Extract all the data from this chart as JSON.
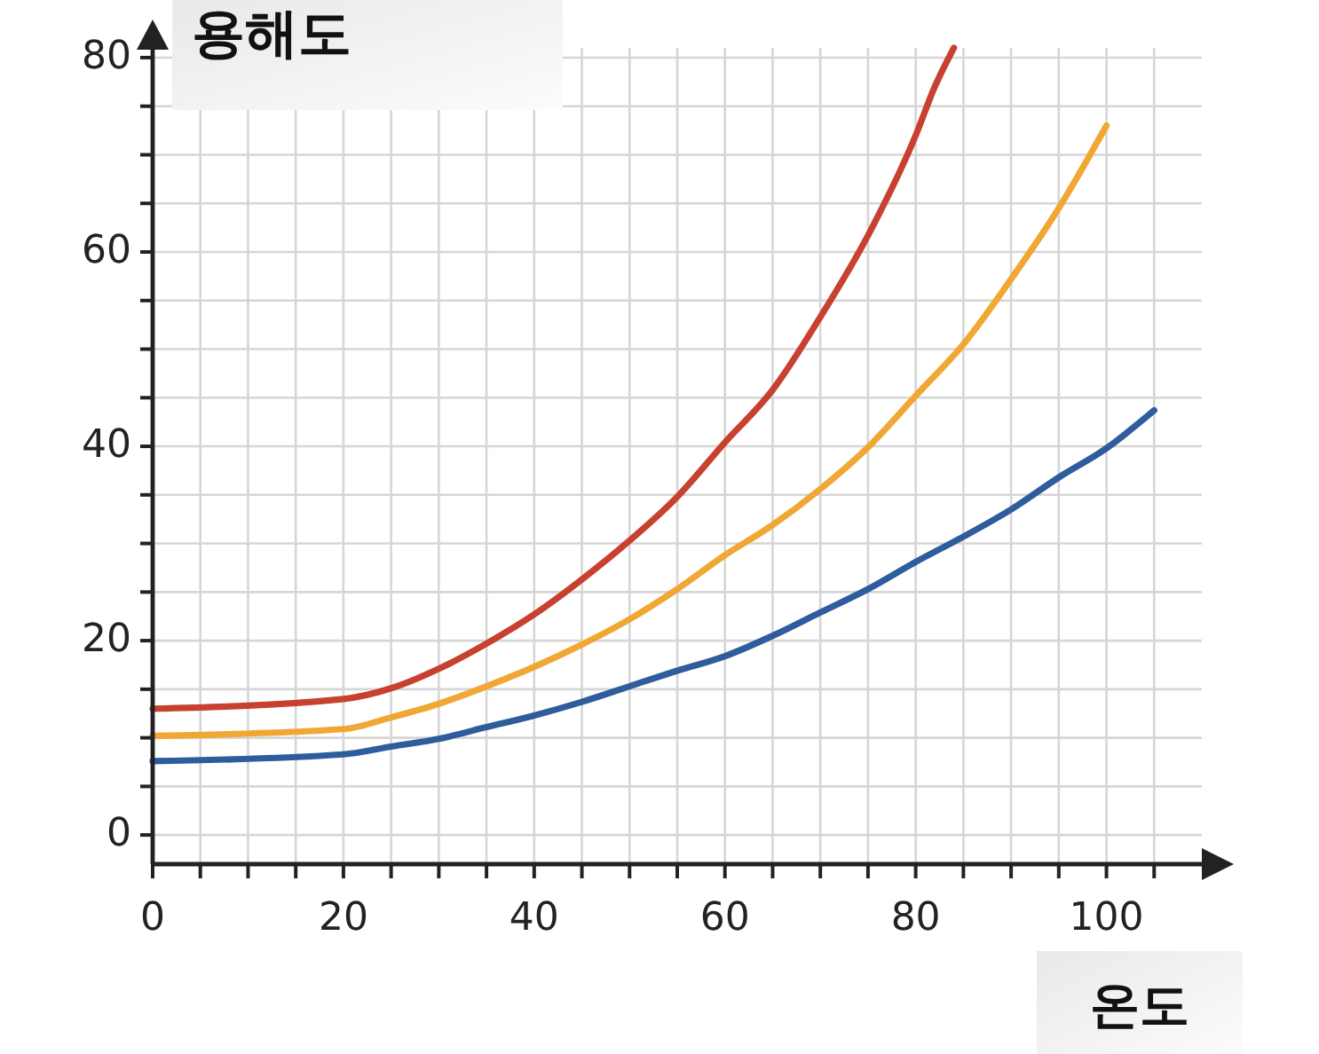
{
  "chart_data": {
    "type": "line",
    "xlabel": "온도",
    "ylabel": "용해도",
    "xlim": [
      0,
      110
    ],
    "ylim": [
      -3,
      81
    ],
    "xticks": [
      0,
      {
        "value": 5,
        "label": null
      },
      {
        "value": 10,
        "label": null
      },
      {
        "value": 15,
        "label": null
      },
      20,
      {
        "value": 25,
        "label": null
      },
      {
        "value": 30,
        "label": null
      },
      {
        "value": 35,
        "label": null
      },
      40,
      {
        "value": 45,
        "label": null
      },
      {
        "value": 50,
        "label": null
      },
      {
        "value": 55,
        "label": null
      },
      60,
      {
        "value": 65,
        "label": null
      },
      {
        "value": 70,
        "label": null
      },
      {
        "value": 75,
        "label": null
      },
      80,
      {
        "value": 85,
        "label": null
      },
      {
        "value": 90,
        "label": null
      },
      {
        "value": 95,
        "label": null
      },
      100,
      {
        "value": 105,
        "label": null
      }
    ],
    "yticks": [
      0,
      {
        "value": 5,
        "label": null
      },
      {
        "value": 10,
        "label": null
      },
      {
        "value": 15,
        "label": null
      },
      20,
      {
        "value": 25,
        "label": null
      },
      {
        "value": 30,
        "label": null
      },
      {
        "value": 35,
        "label": null
      },
      40,
      {
        "value": 45,
        "label": null
      },
      {
        "value": 50,
        "label": null
      },
      {
        "value": 55,
        "label": null
      },
      60,
      {
        "value": 65,
        "label": null
      },
      {
        "value": 70,
        "label": null
      },
      {
        "value": 75,
        "label": null
      },
      80
    ],
    "grid": true,
    "line_style": "solid",
    "series": [
      {
        "color": "#c8402f",
        "x": [
          0,
          20,
          25,
          30,
          35,
          40,
          45,
          50,
          55,
          60,
          65,
          70,
          75,
          80,
          82,
          84
        ],
        "values": [
          13,
          14,
          15.1,
          17.1,
          19.7,
          22.7,
          26.3,
          30.3,
          34.8,
          40.4,
          45.8,
          53.3,
          61.7,
          72,
          77,
          81
        ]
      },
      {
        "color": "#f0a733",
        "x": [
          0,
          20,
          25,
          30,
          35,
          40,
          45,
          50,
          55,
          60,
          65,
          70,
          75,
          80,
          85,
          90,
          95,
          100
        ],
        "values": [
          10.2,
          10.9,
          12.1,
          13.5,
          15.3,
          17.3,
          19.6,
          22.2,
          25.3,
          28.8,
          31.9,
          35.6,
          39.9,
          45.2,
          50.5,
          57.2,
          64.5,
          73
        ]
      },
      {
        "color": "#2e5c9c",
        "x": [
          0,
          20,
          25,
          30,
          35,
          40,
          45,
          50,
          55,
          60,
          65,
          70,
          75,
          80,
          85,
          90,
          95,
          100,
          105
        ],
        "values": [
          7.6,
          8.3,
          9.1,
          9.9,
          11.1,
          12.3,
          13.7,
          15.3,
          16.9,
          18.4,
          20.5,
          22.9,
          25.3,
          28.1,
          30.7,
          33.5,
          36.8,
          39.8,
          43.7
        ]
      }
    ]
  }
}
